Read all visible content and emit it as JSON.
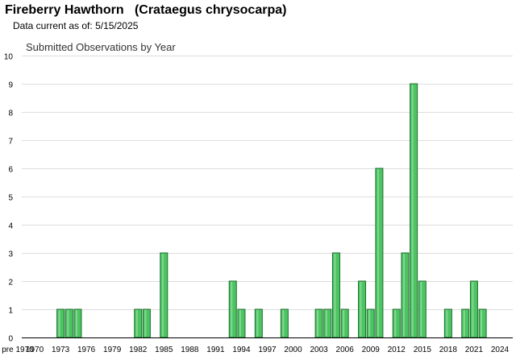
{
  "header": {
    "common_name": "Fireberry Hawthorn",
    "scientific_name": "(Crataegus chrysocarpa)",
    "data_current_label": "Data current as of:",
    "data_current_date": "5/15/2025"
  },
  "colors": {
    "bar_fill": "#4cc462",
    "bar_stroke": "#1d6e2c",
    "gridline": "#dddddd"
  },
  "chart_data": {
    "type": "bar",
    "title": "Submitted Observations by Year",
    "xlabel": "",
    "ylabel": "",
    "ylim": [
      0,
      10
    ],
    "y_ticks": [
      0,
      1,
      2,
      3,
      4,
      5,
      6,
      7,
      8,
      9,
      10
    ],
    "x_tick_labels": [
      "pre 1970",
      "1970",
      "1973",
      "1976",
      "1979",
      "1982",
      "1985",
      "1988",
      "1991",
      "1994",
      "1997",
      "2000",
      "2003",
      "2006",
      "2009",
      "2012",
      "2015",
      "2018",
      "2021",
      "2024"
    ],
    "grid": true,
    "legend": "none",
    "categories": [
      "pre 1970",
      "1970",
      "1971",
      "1972",
      "1973",
      "1974",
      "1975",
      "1976",
      "1977",
      "1978",
      "1979",
      "1980",
      "1981",
      "1982",
      "1983",
      "1984",
      "1985",
      "1986",
      "1987",
      "1988",
      "1989",
      "1990",
      "1991",
      "1992",
      "1993",
      "1994",
      "1995",
      "1996",
      "1997",
      "1998",
      "1999",
      "2000",
      "2001",
      "2002",
      "2003",
      "2004",
      "2005",
      "2006",
      "2007",
      "2008",
      "2009",
      "2010",
      "2011",
      "2012",
      "2013",
      "2014",
      "2015",
      "2016",
      "2017",
      "2018",
      "2019",
      "2020",
      "2021",
      "2022",
      "2023",
      "2024",
      "2025"
    ],
    "values": [
      0,
      0,
      0,
      0,
      1,
      1,
      1,
      0,
      0,
      0,
      0,
      0,
      0,
      1,
      1,
      0,
      3,
      0,
      0,
      0,
      0,
      0,
      0,
      0,
      2,
      1,
      0,
      1,
      0,
      0,
      1,
      0,
      0,
      0,
      1,
      1,
      3,
      1,
      0,
      2,
      1,
      6,
      0,
      1,
      3,
      9,
      2,
      0,
      0,
      1,
      0,
      1,
      2,
      1,
      0,
      0,
      0
    ]
  }
}
